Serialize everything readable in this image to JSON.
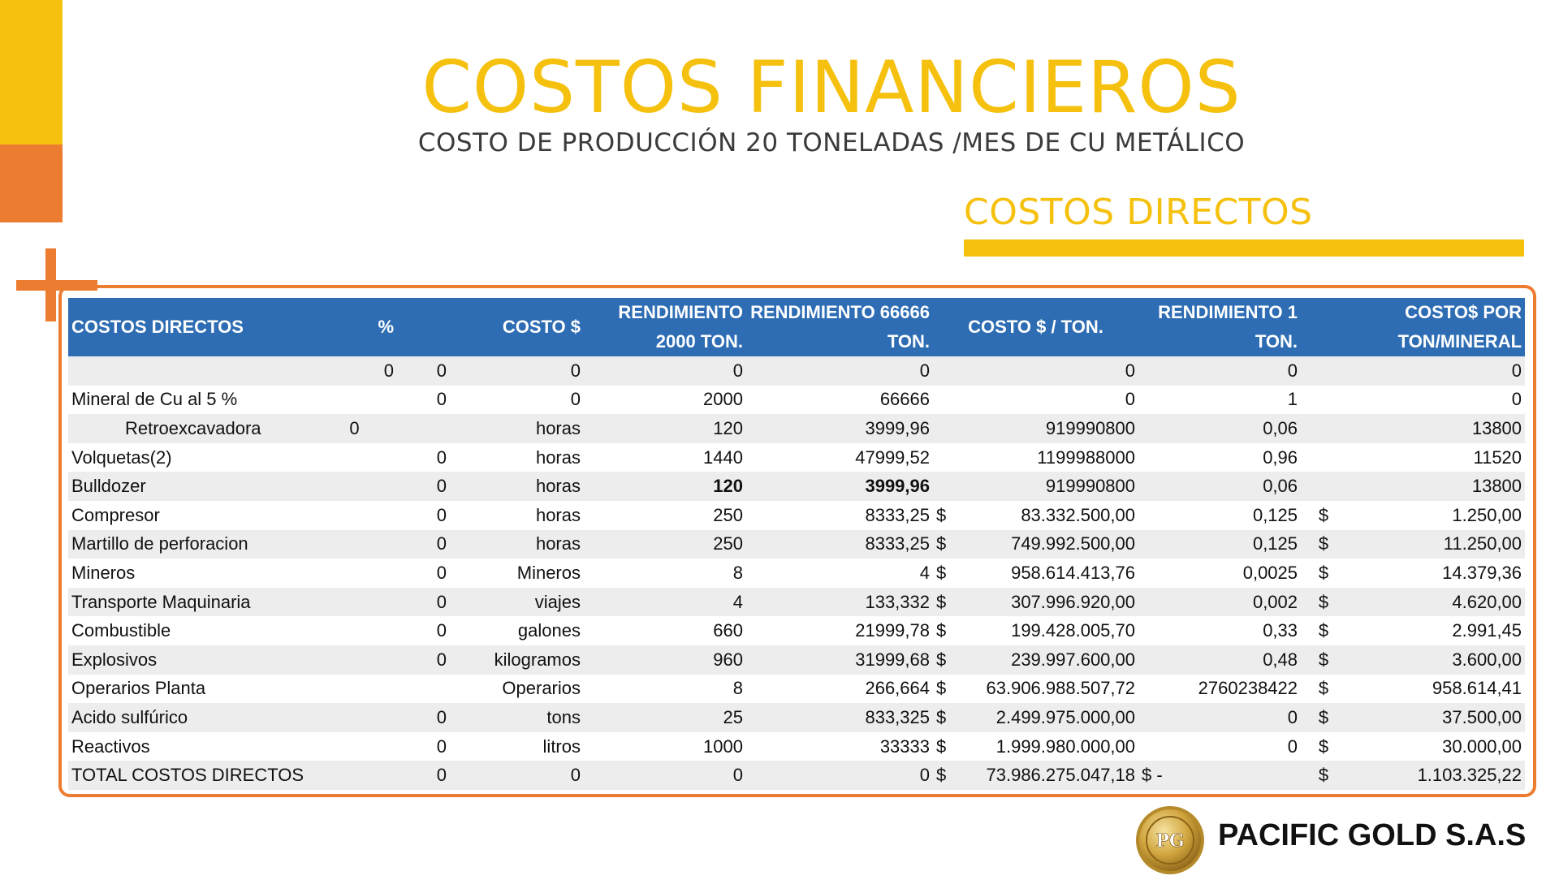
{
  "header": {
    "title": "COSTOS FINANCIEROS",
    "subtitle": "COSTO DE PRODUCCIÓN 20 TONELADAS /MES DE CU METÁLICO",
    "section": "COSTOS DIRECTOS"
  },
  "colors": {
    "accent_yellow": "#F5C10E",
    "accent_orange": "#EC7C30",
    "table_header": "#2E6DB4"
  },
  "table": {
    "headers": [
      "COSTOS DIRECTOS",
      "%",
      "",
      "COSTO $",
      "RENDIMIENTO 2000 TON.",
      "RENDIMIENTO 66666 TON.",
      "COSTO $ / TON.",
      "RENDIMIENTO 1 TON.",
      "COSTO$ POR TON/MINERAL"
    ],
    "rows": [
      [
        "",
        "0",
        "0",
        "0",
        "0",
        "0",
        "",
        "0",
        "0",
        "",
        "0"
      ],
      [
        "Mineral de Cu al 5 %",
        "",
        "0",
        "0",
        "2000",
        "66666",
        "",
        "0",
        "1",
        "",
        "0"
      ],
      [
        "Retroexcavadora",
        "0",
        "",
        "horas",
        "120",
        "3999,96",
        "",
        "919990800",
        "0,06",
        "",
        "13800"
      ],
      [
        "Volquetas(2)",
        "",
        "0",
        "horas",
        "1440",
        "47999,52",
        "",
        "1199988000",
        "0,96",
        "",
        "11520"
      ],
      [
        "Bulldozer",
        "",
        "0",
        "horas",
        "120",
        "3999,96",
        "",
        "919990800",
        "0,06",
        "",
        "13800"
      ],
      [
        "Compresor",
        "",
        "0",
        "horas",
        "250",
        "8333,25",
        "$",
        "83.332.500,00",
        "0,125",
        "$",
        "1.250,00"
      ],
      [
        "Martillo de perforacion",
        "",
        "0",
        "horas",
        "250",
        "8333,25",
        "$",
        "749.992.500,00",
        "0,125",
        "$",
        "11.250,00"
      ],
      [
        "Mineros",
        "",
        "0",
        "Mineros",
        "8",
        "4",
        "$",
        "958.614.413,76",
        "0,0025",
        "$",
        "14.379,36"
      ],
      [
        "Transporte Maquinaria",
        "",
        "0",
        "viajes",
        "4",
        "133,332",
        "$",
        "307.996.920,00",
        "0,002",
        "$",
        "4.620,00"
      ],
      [
        "Combustible",
        "",
        "0",
        "galones",
        "660",
        "21999,78",
        "$",
        "199.428.005,70",
        "0,33",
        "$",
        "2.991,45"
      ],
      [
        "Explosivos",
        "",
        "0",
        "kilogramos",
        "960",
        "31999,68",
        "$",
        "239.997.600,00",
        "0,48",
        "$",
        "3.600,00"
      ],
      [
        "Operarios Planta",
        "",
        "",
        "Operarios",
        "8",
        "266,664",
        "$",
        "63.906.988.507,72",
        "2760238422",
        "$",
        "958.614,41"
      ],
      [
        "Acido sulfúrico",
        "",
        "0",
        "tons",
        "25",
        "833,325",
        "$",
        "2.499.975.000,00",
        "0",
        "$",
        "37.500,00"
      ],
      [
        "Reactivos",
        "",
        "0",
        "litros",
        "1000",
        "33333",
        "$",
        "1.999.980.000,00",
        "0",
        "$",
        "30.000,00"
      ],
      [
        "TOTAL COSTOS DIRECTOS",
        "",
        "0",
        "0",
        "0",
        "0",
        "$",
        "73.986.275.047,18",
        "$                -",
        "$",
        "1.103.325,22"
      ]
    ]
  },
  "footer": {
    "logo_text": "PG",
    "company": "PACIFIC GOLD S.A.S"
  }
}
